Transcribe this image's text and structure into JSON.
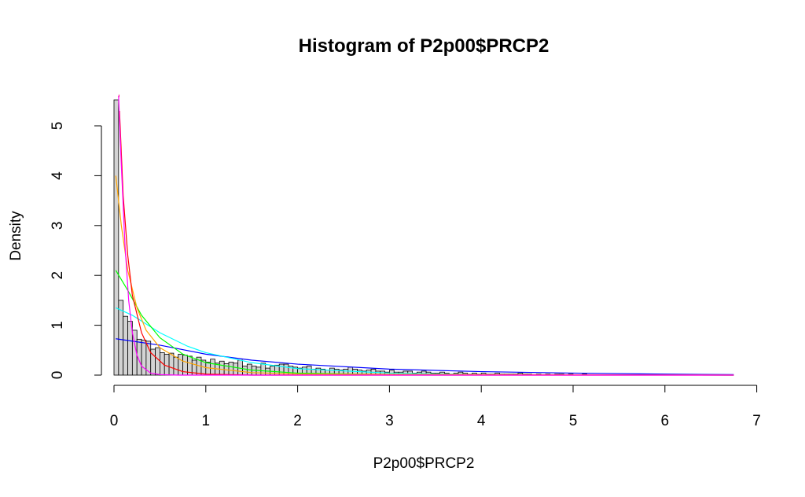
{
  "chart_data": {
    "type": "histogram",
    "title": "Histogram of P2p00$PRCP2",
    "xlabel": "P2p00$PRCP2",
    "ylabel": "Density",
    "xlim": [
      0,
      7
    ],
    "ylim": [
      0,
      5.5
    ],
    "x_ticks": [
      "0",
      "1",
      "2",
      "3",
      "4",
      "5",
      "6",
      "7"
    ],
    "y_ticks": [
      "0",
      "1",
      "2",
      "3",
      "4",
      "5"
    ],
    "bin_width": 0.05,
    "bins_start": 0,
    "bar_color": "#d3d3d3",
    "bar_border": "#000000",
    "densities": [
      5.52,
      1.5,
      1.18,
      1.08,
      0.9,
      0.72,
      0.7,
      0.68,
      0.52,
      0.55,
      0.45,
      0.42,
      0.44,
      0.36,
      0.42,
      0.4,
      0.38,
      0.3,
      0.36,
      0.3,
      0.26,
      0.32,
      0.24,
      0.28,
      0.23,
      0.26,
      0.24,
      0.3,
      0.18,
      0.22,
      0.18,
      0.16,
      0.24,
      0.14,
      0.18,
      0.2,
      0.22,
      0.22,
      0.18,
      0.16,
      0.14,
      0.16,
      0.18,
      0.12,
      0.14,
      0.12,
      0.1,
      0.14,
      0.12,
      0.1,
      0.12,
      0.16,
      0.12,
      0.1,
      0.08,
      0.1,
      0.12,
      0.08,
      0.08,
      0.06,
      0.1,
      0.06,
      0.06,
      0.08,
      0.08,
      0.04,
      0.06,
      0.08,
      0.06,
      0.04,
      0.04,
      0.06,
      0.04,
      0.02,
      0.04,
      0.06,
      0.04,
      0.02,
      0.04,
      0.02,
      0.04,
      0.02,
      0.02,
      0.04,
      0.02,
      0.02,
      0.02,
      0.02,
      0.04,
      0.02,
      0.02,
      0.0,
      0.02,
      0.0,
      0.02,
      0.0,
      0.02,
      0.02,
      0.0,
      0.02,
      0.0,
      0.0,
      0.02,
      0.0,
      0.0,
      0.0,
      0.0,
      0.0,
      0.0,
      0.0,
      0.0,
      0.0,
      0.0,
      0.0,
      0.0,
      0.0,
      0.0,
      0.0,
      0.0,
      0.0,
      0.0,
      0.0,
      0.0,
      0.0,
      0.0,
      0.0,
      0.0,
      0.0,
      0.0,
      0.0,
      0.0,
      0.0,
      0.0,
      0.0,
      0.0
    ],
    "series": [
      {
        "color": "#0000ff",
        "points": [
          [
            0.02,
            0.73
          ],
          [
            0.5,
            0.6
          ],
          [
            1.0,
            0.42
          ],
          [
            1.5,
            0.3
          ],
          [
            2.0,
            0.22
          ],
          [
            3.0,
            0.12
          ],
          [
            4.0,
            0.07
          ],
          [
            5.0,
            0.04
          ],
          [
            6.0,
            0.02
          ],
          [
            6.75,
            0.01
          ]
        ]
      },
      {
        "color": "#00ffff",
        "points": [
          [
            0.02,
            1.35
          ],
          [
            0.2,
            1.2
          ],
          [
            0.5,
            0.85
          ],
          [
            0.8,
            0.58
          ],
          [
            1.0,
            0.45
          ],
          [
            1.5,
            0.25
          ],
          [
            2.0,
            0.13
          ],
          [
            3.0,
            0.04
          ],
          [
            4.0,
            0.01
          ],
          [
            6.75,
            0.0
          ]
        ]
      },
      {
        "color": "#00ff00",
        "points": [
          [
            0.02,
            2.1
          ],
          [
            0.15,
            1.7
          ],
          [
            0.3,
            1.2
          ],
          [
            0.5,
            0.75
          ],
          [
            0.75,
            0.42
          ],
          [
            1.0,
            0.25
          ],
          [
            1.5,
            0.1
          ],
          [
            2.0,
            0.04
          ],
          [
            3.0,
            0.01
          ],
          [
            6.75,
            0.0
          ]
        ]
      },
      {
        "color": "#ffa500",
        "points": [
          [
            0.02,
            4.0
          ],
          [
            0.08,
            3.0
          ],
          [
            0.15,
            2.1
          ],
          [
            0.25,
            1.35
          ],
          [
            0.35,
            0.9
          ],
          [
            0.5,
            0.55
          ],
          [
            0.75,
            0.28
          ],
          [
            1.0,
            0.15
          ],
          [
            1.5,
            0.05
          ],
          [
            2.0,
            0.02
          ],
          [
            6.75,
            0.0
          ]
        ]
      },
      {
        "color": "#ff0000",
        "points": [
          [
            0.06,
            5.3
          ],
          [
            0.1,
            3.6
          ],
          [
            0.15,
            2.4
          ],
          [
            0.2,
            1.6
          ],
          [
            0.3,
            0.85
          ],
          [
            0.4,
            0.45
          ],
          [
            0.55,
            0.2
          ],
          [
            0.75,
            0.07
          ],
          [
            1.0,
            0.02
          ],
          [
            1.5,
            0.0
          ],
          [
            6.75,
            0.0
          ]
        ]
      },
      {
        "color": "#ff00ff",
        "points": [
          [
            0.05,
            5.6
          ],
          [
            0.08,
            4.2
          ],
          [
            0.12,
            2.6
          ],
          [
            0.16,
            1.5
          ],
          [
            0.2,
            0.85
          ],
          [
            0.25,
            0.4
          ],
          [
            0.3,
            0.18
          ],
          [
            0.4,
            0.04
          ],
          [
            0.5,
            0.01
          ],
          [
            0.7,
            0.0
          ],
          [
            6.75,
            0.0
          ]
        ]
      },
      {
        "color": "#ff1493",
        "points": [
          [
            0.05,
            5.6
          ],
          [
            0.06,
            5.6
          ]
        ]
      }
    ]
  }
}
